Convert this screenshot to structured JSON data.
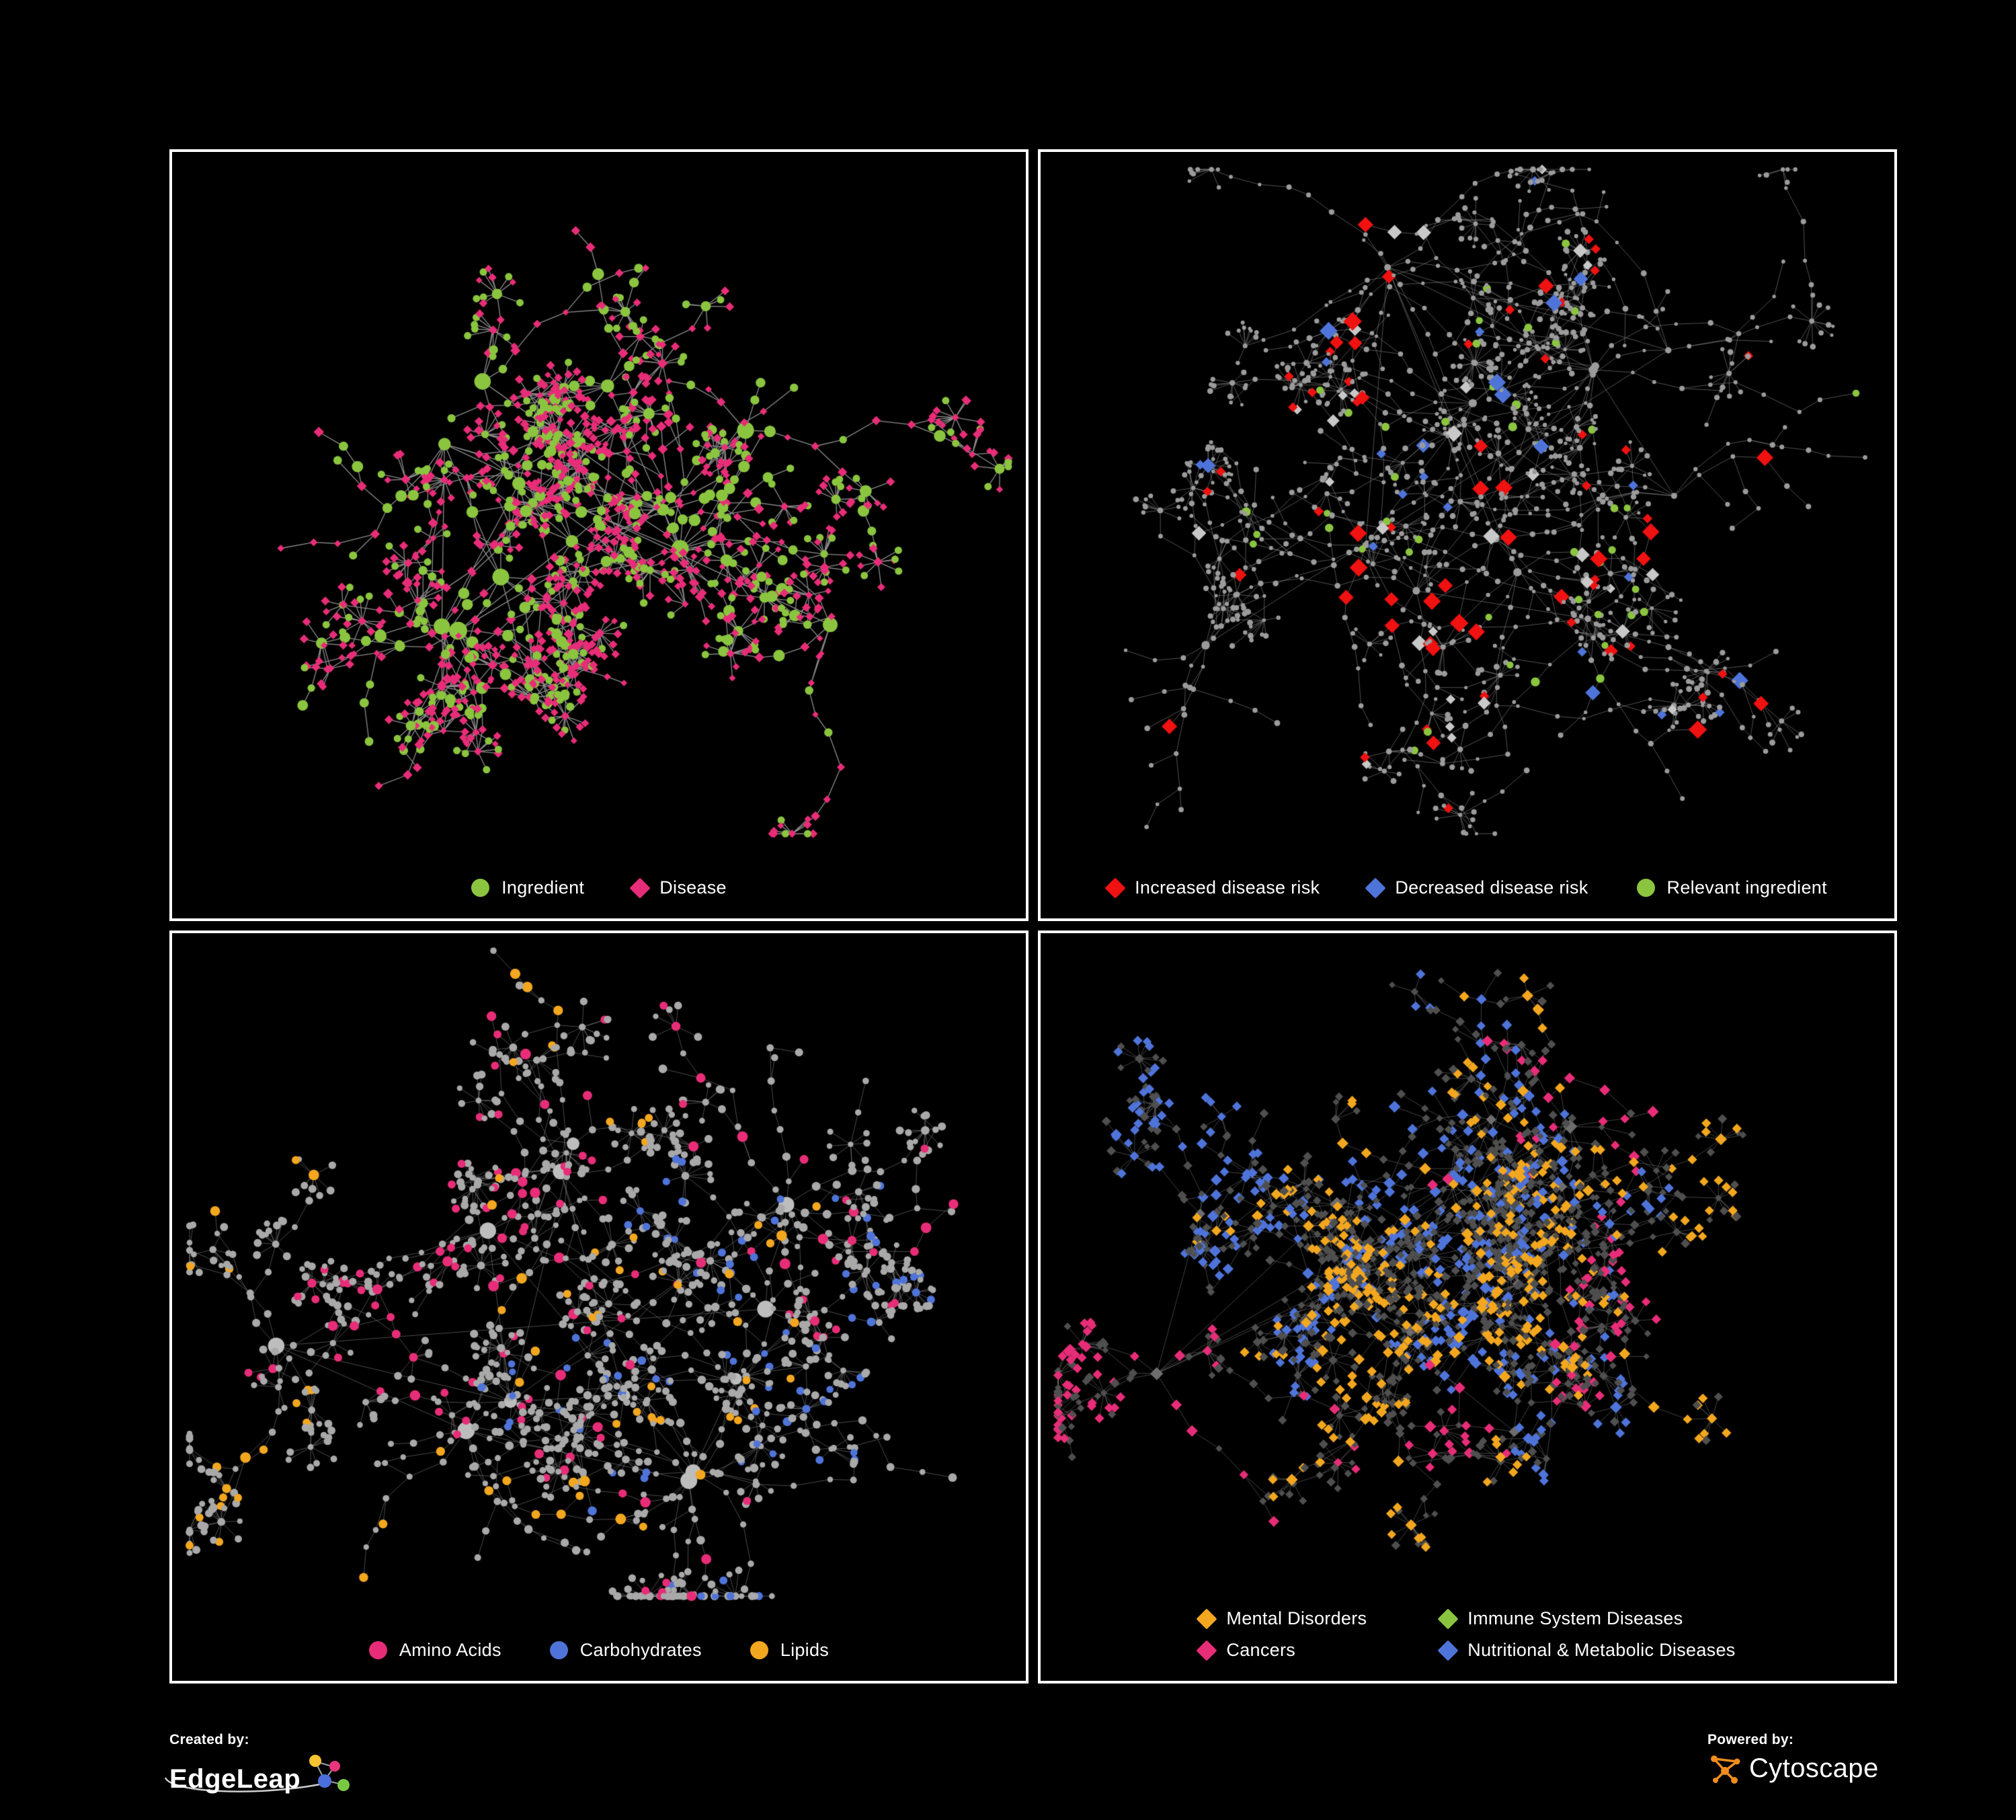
{
  "page": {
    "background": "#000000",
    "frame_color": "#ffffff"
  },
  "panels": [
    {
      "name": "ingredient-disease-network",
      "legend": {
        "columns": 1,
        "items": [
          {
            "label": "Ingredient",
            "shape": "circle",
            "color": "#8bc53f"
          },
          {
            "label": "Disease",
            "shape": "diamond",
            "color": "#e82d78"
          }
        ]
      },
      "network": {
        "seed": 13,
        "hubs": 13,
        "hubSize": [
          9,
          14
        ],
        "hubColor": "#8bc53f",
        "mode": "mix",
        "palette": [
          {
            "color": "#8bc53f",
            "shape": "circle",
            "p": 0.36,
            "size": 7
          },
          {
            "color": "#e82d78",
            "shape": "diamond",
            "p": 0.64,
            "size": 5
          }
        ],
        "edgeColor": "rgba(175,175,175,0.8)",
        "lineWidth": 1.3,
        "steps": [
          2,
          5
        ],
        "len": [
          26,
          58
        ],
        "burstP": 0.5,
        "subP": 0.3
      }
    },
    {
      "name": "disease-risk-network",
      "legend": {
        "columns": 1,
        "items": [
          {
            "label": "Increased disease risk",
            "shape": "diamond",
            "color": "#f01111"
          },
          {
            "label": "Decreased disease risk",
            "shape": "diamond",
            "color": "#4f74d9"
          },
          {
            "label": "Relevant ingredient",
            "shape": "circle",
            "color": "#8bc53f"
          }
        ]
      },
      "network": {
        "seed": 41,
        "hubs": 12,
        "hubSize": [
          4,
          7
        ],
        "mode": "tint",
        "baseColor": "#9b9b9b",
        "baseShape": "circle",
        "baseSize": [
          2.5,
          4.5
        ],
        "tints": [
          {
            "color": "#f01111",
            "shape": "diamond",
            "w": 0.4,
            "size": 10
          },
          {
            "color": "#4f74d9",
            "shape": "diamond",
            "w": 0.18,
            "size": 10
          },
          {
            "color": "#8bc53f",
            "shape": "circle",
            "w": 0.3,
            "size": 6
          },
          {
            "color": "#c8c8c8",
            "shape": "diamond",
            "w": 0.12,
            "size": 9
          }
        ],
        "tintP": 0.075,
        "centerBias": true,
        "edgeColor": "rgba(150,150,150,0.55)",
        "lineWidth": 1,
        "steps": [
          3,
          7
        ],
        "len": [
          28,
          62
        ],
        "burstP": 0.32,
        "subP": 0.3
      }
    },
    {
      "name": "nutrient-class-network",
      "legend": {
        "columns": 1,
        "items": [
          {
            "label": "Amino Acids",
            "shape": "circle",
            "color": "#e82d78"
          },
          {
            "label": "Carbohydrates",
            "shape": "circle",
            "color": "#4f74d9"
          },
          {
            "label": "Lipids",
            "shape": "circle",
            "color": "#f3a71f"
          }
        ]
      },
      "network": {
        "seed": 97,
        "hubs": 12,
        "hubSize": [
          8,
          13
        ],
        "hubColor": "#bdbdbd",
        "mode": "tint",
        "baseColor": "#a9a9a9",
        "baseShape": "circle",
        "baseSize": [
          4,
          6.5
        ],
        "tints": [
          {
            "color": "#f3a71f",
            "shape": "circle",
            "w": 0.48,
            "size": 7
          },
          {
            "color": "#e82d78",
            "shape": "circle",
            "w": 0.28,
            "size": 7
          },
          {
            "color": "#4f74d9",
            "shape": "circle",
            "w": 0.24,
            "size": 6
          }
        ],
        "tintP": 0.22,
        "clusterTint": true,
        "edgeColor": "rgba(150,150,150,0.5)",
        "lineWidth": 1,
        "steps": [
          2,
          6
        ],
        "len": [
          26,
          60
        ],
        "burstP": 0.4,
        "subP": 0.3
      }
    },
    {
      "name": "disease-class-network",
      "legend": {
        "columns": 2,
        "items": [
          {
            "label": "Mental Disorders",
            "shape": "diamond",
            "color": "#f3a71f"
          },
          {
            "label": "Immune System Diseases",
            "shape": "diamond",
            "color": "#8bc53f"
          },
          {
            "label": "Cancers",
            "shape": "diamond",
            "color": "#e82d78"
          },
          {
            "label": "Nutritional & Metabolic Diseases",
            "shape": "diamond",
            "color": "#4f74d9"
          }
        ]
      },
      "network": {
        "seed": 71,
        "hubs": 14,
        "hubSize": [
          6,
          9
        ],
        "hubColor": "#6e6e6e",
        "mode": "tint",
        "baseColor": "#4f4f4f",
        "baseShape": "diamond",
        "baseSize": [
          4,
          6
        ],
        "tints": [
          {
            "color": "#f3a71f",
            "shape": "diamond",
            "w": 0.33,
            "size": 6.5
          },
          {
            "color": "#e82d78",
            "shape": "diamond",
            "w": 0.24,
            "size": 6.5
          },
          {
            "color": "#4f74d9",
            "shape": "diamond",
            "w": 0.33,
            "size": 6.5
          },
          {
            "color": "#7ac943",
            "shape": "diamond",
            "w": 0.1,
            "size": 6.5
          }
        ],
        "tintP": 0.5,
        "clusterTint": true,
        "edgeColor": "rgba(130,130,130,0.5)",
        "lineWidth": 1,
        "steps": [
          2,
          6
        ],
        "len": [
          24,
          56
        ],
        "burstP": 0.45,
        "subP": 0.32
      }
    }
  ],
  "footer": {
    "created_by": {
      "label": "Created by:",
      "brand": "EdgeLeap"
    },
    "powered_by": {
      "label": "Powered by:",
      "brand": "Cytoscape",
      "accent_color": "#f08c1e"
    }
  }
}
